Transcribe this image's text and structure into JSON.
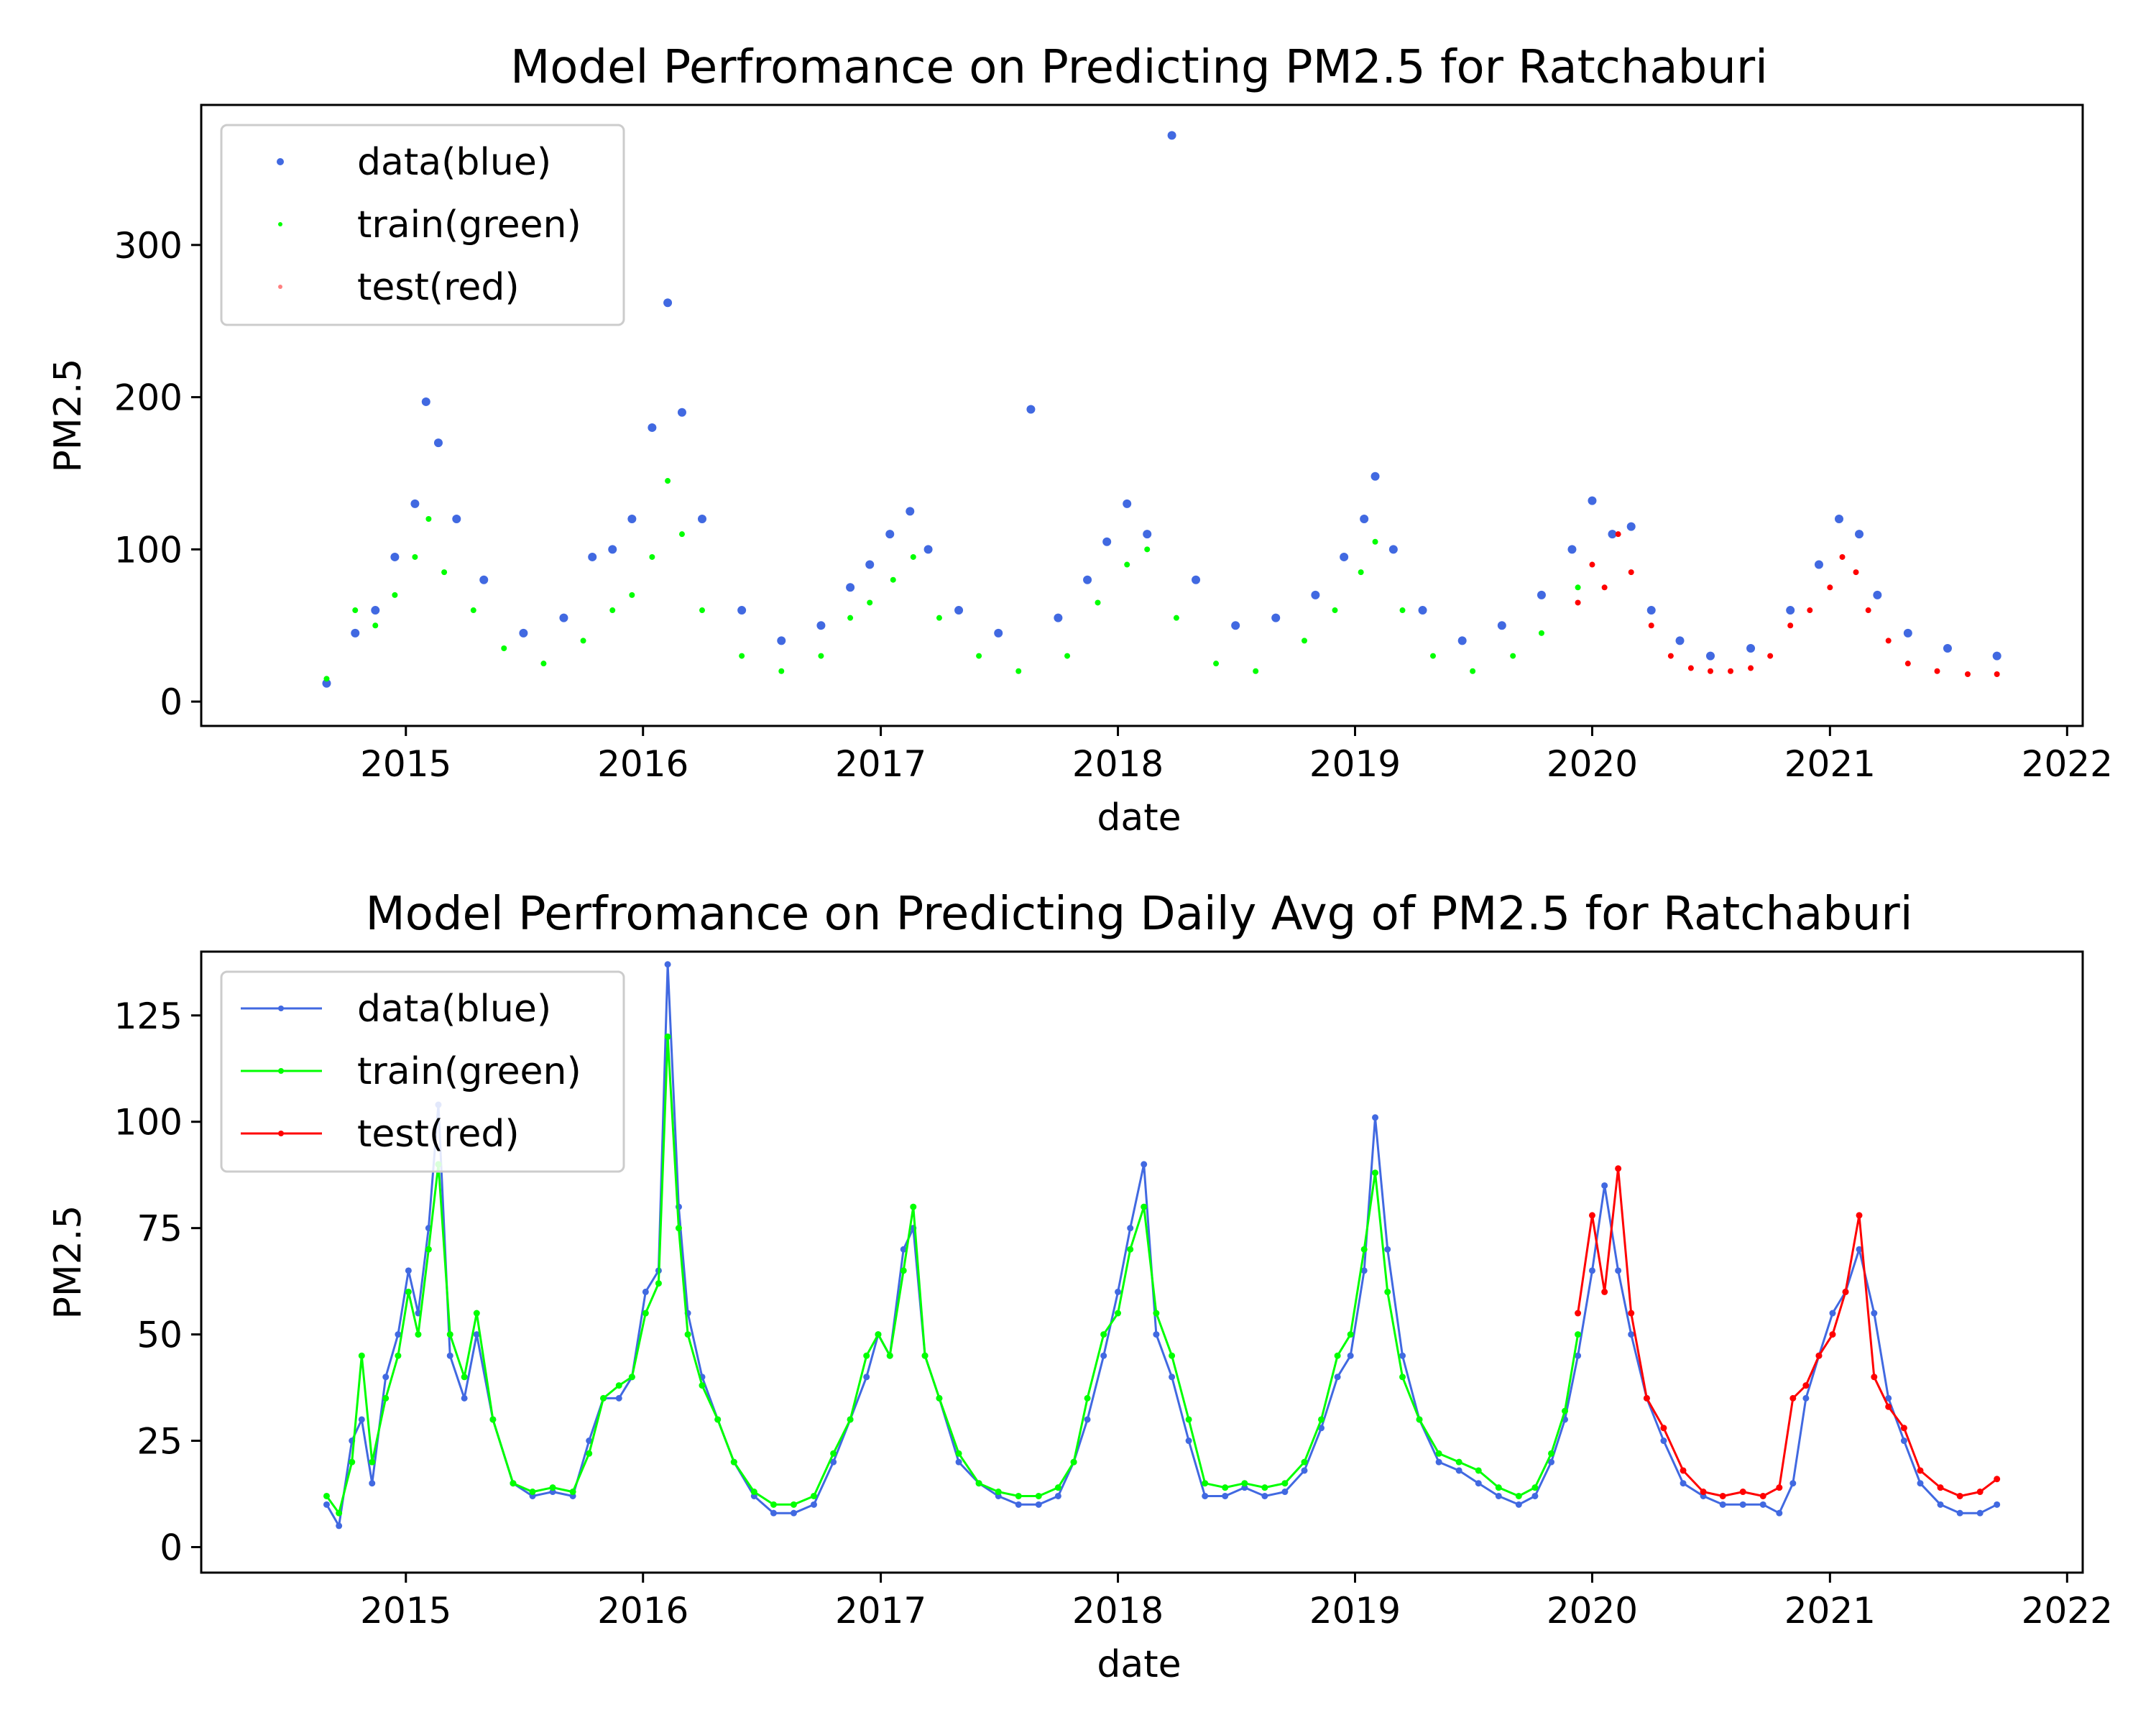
{
  "colors": {
    "data": "#4169e1",
    "train": "#00ff00",
    "test": "#ff0000",
    "axis": "#000000"
  },
  "chart_data": [
    {
      "type": "scatter",
      "title": "Model Perfromance on Predicting PM2.5 for Ratchaburi",
      "xlabel": "date",
      "ylabel": "PM2.5",
      "xlim": [
        "2014-02-20",
        "2022-01-25"
      ],
      "ylim": [
        -16,
        392
      ],
      "xticks": [
        "2015",
        "2016",
        "2017",
        "2018",
        "2019",
        "2020",
        "2021",
        "2022"
      ],
      "yticks": [
        "0",
        "100",
        "200",
        "300"
      ],
      "legend": {
        "placement": "upper-left",
        "entries": [
          "data(blue)",
          "train(green)",
          "test(red)"
        ]
      },
      "grid": false,
      "series": [
        {
          "name": "data(blue)",
          "color": "#4169e1",
          "x": [
            "2014-09-01",
            "2014-10-15",
            "2014-11-15",
            "2014-12-15",
            "2015-01-15",
            "2015-02-01",
            "2015-02-20",
            "2015-03-20",
            "2015-05-01",
            "2015-07-01",
            "2015-09-01",
            "2015-10-15",
            "2015-11-15",
            "2015-12-15",
            "2016-01-15",
            "2016-02-08",
            "2016-03-01",
            "2016-04-01",
            "2016-06-01",
            "2016-08-01",
            "2016-10-01",
            "2016-11-15",
            "2016-12-15",
            "2017-01-15",
            "2017-02-15",
            "2017-03-15",
            "2017-05-01",
            "2017-07-01",
            "2017-08-20",
            "2017-10-01",
            "2017-11-15",
            "2017-12-15",
            "2018-01-15",
            "2018-02-15",
            "2018-03-25",
            "2018-05-01",
            "2018-07-01",
            "2018-09-01",
            "2018-11-01",
            "2018-12-15",
            "2019-01-15",
            "2019-02-01",
            "2019-03-01",
            "2019-04-15",
            "2019-06-15",
            "2019-08-15",
            "2019-10-15",
            "2019-12-01",
            "2020-01-01",
            "2020-02-01",
            "2020-03-01",
            "2020-04-01",
            "2020-05-15",
            "2020-07-01",
            "2020-09-01",
            "2020-11-01",
            "2020-12-15",
            "2021-01-15",
            "2021-02-15",
            "2021-03-15",
            "2021-05-01",
            "2021-07-01",
            "2021-09-15"
          ],
          "y": [
            12,
            45,
            60,
            95,
            130,
            197,
            170,
            120,
            80,
            45,
            55,
            95,
            100,
            120,
            180,
            262,
            190,
            120,
            60,
            40,
            50,
            75,
            90,
            110,
            125,
            100,
            60,
            45,
            192,
            55,
            80,
            105,
            130,
            110,
            372,
            80,
            50,
            55,
            70,
            95,
            120,
            148,
            100,
            60,
            40,
            50,
            70,
            100,
            132,
            110,
            115,
            60,
            40,
            30,
            35,
            60,
            90,
            120,
            110,
            70,
            45,
            35,
            30
          ]
        },
        {
          "name": "train(green)",
          "color": "#00ff00",
          "x": [
            "2014-09-01",
            "2014-10-15",
            "2014-11-15",
            "2014-12-15",
            "2015-01-15",
            "2015-02-05",
            "2015-03-01",
            "2015-04-15",
            "2015-06-01",
            "2015-08-01",
            "2015-10-01",
            "2015-11-15",
            "2015-12-15",
            "2016-01-15",
            "2016-02-08",
            "2016-03-01",
            "2016-04-01",
            "2016-06-01",
            "2016-08-01",
            "2016-10-01",
            "2016-11-15",
            "2016-12-15",
            "2017-01-20",
            "2017-02-20",
            "2017-04-01",
            "2017-06-01",
            "2017-08-01",
            "2017-10-15",
            "2017-12-01",
            "2018-01-15",
            "2018-02-15",
            "2018-04-01",
            "2018-06-01",
            "2018-08-01",
            "2018-10-15",
            "2018-12-01",
            "2019-01-10",
            "2019-02-01",
            "2019-03-15",
            "2019-05-01",
            "2019-07-01",
            "2019-09-01",
            "2019-10-15",
            "2019-12-10"
          ],
          "y": [
            15,
            60,
            50,
            70,
            95,
            120,
            85,
            60,
            35,
            25,
            40,
            60,
            70,
            95,
            145,
            110,
            60,
            30,
            20,
            30,
            55,
            65,
            80,
            95,
            55,
            30,
            20,
            30,
            65,
            90,
            100,
            55,
            25,
            20,
            40,
            60,
            85,
            105,
            60,
            30,
            20,
            30,
            45,
            75
          ]
        },
        {
          "name": "test(red)",
          "color": "#ff0000",
          "x": [
            "2019-12-10",
            "2020-01-01",
            "2020-01-20",
            "2020-02-10",
            "2020-03-01",
            "2020-04-01",
            "2020-05-01",
            "2020-06-01",
            "2020-07-01",
            "2020-08-01",
            "2020-09-01",
            "2020-10-01",
            "2020-11-01",
            "2020-12-01",
            "2021-01-01",
            "2021-01-20",
            "2021-02-10",
            "2021-03-01",
            "2021-04-01",
            "2021-05-01",
            "2021-06-15",
            "2021-08-01",
            "2021-09-15"
          ],
          "y": [
            65,
            90,
            75,
            110,
            85,
            50,
            30,
            22,
            20,
            20,
            22,
            30,
            50,
            60,
            75,
            95,
            85,
            60,
            40,
            25,
            20,
            18,
            18
          ]
        }
      ]
    },
    {
      "type": "line",
      "title": "Model Perfromance on Predicting Daily Avg of PM2.5 for Ratchaburi",
      "xlabel": "date",
      "ylabel": "PM2.5",
      "xlim": [
        "2014-02-20",
        "2022-01-25"
      ],
      "ylim": [
        -6,
        140
      ],
      "xticks": [
        "2015",
        "2016",
        "2017",
        "2018",
        "2019",
        "2020",
        "2021",
        "2022"
      ],
      "yticks": [
        "0",
        "25",
        "50",
        "75",
        "100",
        "125"
      ],
      "legend": {
        "placement": "upper-left",
        "entries": [
          "data(blue)",
          "train(green)",
          "test(red)"
        ]
      },
      "grid": false,
      "series": [
        {
          "name": "data(blue)",
          "color": "#4169e1",
          "x": [
            "2014-09-01",
            "2014-09-20",
            "2014-10-10",
            "2014-10-25",
            "2014-11-10",
            "2014-12-01",
            "2014-12-20",
            "2015-01-05",
            "2015-01-20",
            "2015-02-05",
            "2015-02-20",
            "2015-03-10",
            "2015-04-01",
            "2015-04-20",
            "2015-05-15",
            "2015-06-15",
            "2015-07-15",
            "2015-08-15",
            "2015-09-15",
            "2015-10-10",
            "2015-11-01",
            "2015-11-25",
            "2015-12-15",
            "2016-01-05",
            "2016-01-25",
            "2016-02-08",
            "2016-02-25",
            "2016-03-10",
            "2016-04-01",
            "2016-04-25",
            "2016-05-20",
            "2016-06-20",
            "2016-07-20",
            "2016-08-20",
            "2016-09-20",
            "2016-10-20",
            "2016-11-15",
            "2016-12-10",
            "2016-12-28",
            "2017-01-15",
            "2017-02-05",
            "2017-02-20",
            "2017-03-10",
            "2017-04-01",
            "2017-05-01",
            "2017-06-01",
            "2017-07-01",
            "2017-08-01",
            "2017-09-01",
            "2017-10-01",
            "2017-10-25",
            "2017-11-15",
            "2017-12-10",
            "2018-01-01",
            "2018-01-20",
            "2018-02-10",
            "2018-03-01",
            "2018-03-25",
            "2018-04-20",
            "2018-05-15",
            "2018-06-15",
            "2018-07-15",
            "2018-08-15",
            "2018-09-15",
            "2018-10-15",
            "2018-11-10",
            "2018-12-05",
            "2018-12-25",
            "2019-01-15",
            "2019-02-01",
            "2019-02-20",
            "2019-03-15",
            "2019-04-10",
            "2019-05-10",
            "2019-06-10",
            "2019-07-10",
            "2019-08-10",
            "2019-09-10",
            "2019-10-05",
            "2019-10-30",
            "2019-11-20",
            "2019-12-10",
            "2020-01-01",
            "2020-01-20",
            "2020-02-10",
            "2020-03-01",
            "2020-03-25",
            "2020-04-20",
            "2020-05-20",
            "2020-06-20",
            "2020-07-20",
            "2020-08-20",
            "2020-09-20",
            "2020-10-15",
            "2020-11-05",
            "2020-11-25",
            "2020-12-15",
            "2021-01-05",
            "2021-01-25",
            "2021-02-15",
            "2021-03-10",
            "2021-04-01",
            "2021-04-25",
            "2021-05-20",
            "2021-06-20",
            "2021-07-20",
            "2021-08-20",
            "2021-09-15"
          ],
          "y": [
            10,
            5,
            25,
            30,
            15,
            40,
            50,
            65,
            55,
            75,
            104,
            45,
            35,
            50,
            30,
            15,
            12,
            13,
            12,
            25,
            35,
            35,
            40,
            60,
            65,
            137,
            80,
            55,
            40,
            30,
            20,
            12,
            8,
            8,
            10,
            20,
            30,
            40,
            50,
            45,
            70,
            75,
            45,
            35,
            20,
            15,
            12,
            10,
            10,
            12,
            20,
            30,
            45,
            60,
            75,
            90,
            50,
            40,
            25,
            12,
            12,
            14,
            12,
            13,
            18,
            28,
            40,
            45,
            65,
            101,
            70,
            45,
            30,
            20,
            18,
            15,
            12,
            10,
            12,
            20,
            30,
            45,
            65,
            85,
            65,
            50,
            35,
            25,
            15,
            12,
            10,
            10,
            10,
            8,
            15,
            35,
            45,
            55,
            60,
            70,
            55,
            35,
            25,
            15,
            10,
            8,
            8,
            10
          ]
        },
        {
          "name": "train(green)",
          "color": "#00ff00",
          "x": [
            "2014-09-01",
            "2014-09-20",
            "2014-10-10",
            "2014-10-25",
            "2014-11-10",
            "2014-12-01",
            "2014-12-20",
            "2015-01-05",
            "2015-01-20",
            "2015-02-05",
            "2015-02-20",
            "2015-03-10",
            "2015-04-01",
            "2015-04-20",
            "2015-05-15",
            "2015-06-15",
            "2015-07-15",
            "2015-08-15",
            "2015-09-15",
            "2015-10-10",
            "2015-11-01",
            "2015-11-25",
            "2015-12-15",
            "2016-01-05",
            "2016-01-25",
            "2016-02-08",
            "2016-02-25",
            "2016-03-10",
            "2016-04-01",
            "2016-04-25",
            "2016-05-20",
            "2016-06-20",
            "2016-07-20",
            "2016-08-20",
            "2016-09-20",
            "2016-10-20",
            "2016-11-15",
            "2016-12-10",
            "2016-12-28",
            "2017-01-15",
            "2017-02-05",
            "2017-02-20",
            "2017-03-10",
            "2017-04-01",
            "2017-05-01",
            "2017-06-01",
            "2017-07-01",
            "2017-08-01",
            "2017-09-01",
            "2017-10-01",
            "2017-10-25",
            "2017-11-15",
            "2017-12-10",
            "2018-01-01",
            "2018-01-20",
            "2018-02-10",
            "2018-03-01",
            "2018-03-25",
            "2018-04-20",
            "2018-05-15",
            "2018-06-15",
            "2018-07-15",
            "2018-08-15",
            "2018-09-15",
            "2018-10-15",
            "2018-11-10",
            "2018-12-05",
            "2018-12-25",
            "2019-01-15",
            "2019-02-01",
            "2019-02-20",
            "2019-03-15",
            "2019-04-10",
            "2019-05-10",
            "2019-06-10",
            "2019-07-10",
            "2019-08-10",
            "2019-09-10",
            "2019-10-05",
            "2019-10-30",
            "2019-11-20",
            "2019-12-10"
          ],
          "y": [
            12,
            8,
            20,
            45,
            20,
            35,
            45,
            60,
            50,
            70,
            90,
            50,
            40,
            55,
            30,
            15,
            13,
            14,
            13,
            22,
            35,
            38,
            40,
            55,
            62,
            120,
            75,
            50,
            38,
            30,
            20,
            13,
            10,
            10,
            12,
            22,
            30,
            45,
            50,
            45,
            65,
            80,
            45,
            35,
            22,
            15,
            13,
            12,
            12,
            14,
            20,
            35,
            50,
            55,
            70,
            80,
            55,
            45,
            30,
            15,
            14,
            15,
            14,
            15,
            20,
            30,
            45,
            50,
            70,
            88,
            60,
            40,
            30,
            22,
            20,
            18,
            14,
            12,
            14,
            22,
            32,
            50
          ]
        },
        {
          "name": "test(red)",
          "color": "#ff0000",
          "x": [
            "2019-12-10",
            "2020-01-01",
            "2020-01-20",
            "2020-02-10",
            "2020-03-01",
            "2020-03-25",
            "2020-04-20",
            "2020-05-20",
            "2020-06-20",
            "2020-07-20",
            "2020-08-20",
            "2020-09-20",
            "2020-10-15",
            "2020-11-05",
            "2020-11-25",
            "2020-12-15",
            "2021-01-05",
            "2021-01-25",
            "2021-02-15",
            "2021-03-10",
            "2021-04-01",
            "2021-04-25",
            "2021-05-20",
            "2021-06-20",
            "2021-07-20",
            "2021-08-20",
            "2021-09-15"
          ],
          "y": [
            55,
            78,
            60,
            89,
            55,
            35,
            28,
            18,
            13,
            12,
            13,
            12,
            14,
            35,
            38,
            45,
            50,
            60,
            78,
            40,
            33,
            28,
            18,
            14,
            12,
            13,
            16
          ]
        }
      ]
    }
  ]
}
